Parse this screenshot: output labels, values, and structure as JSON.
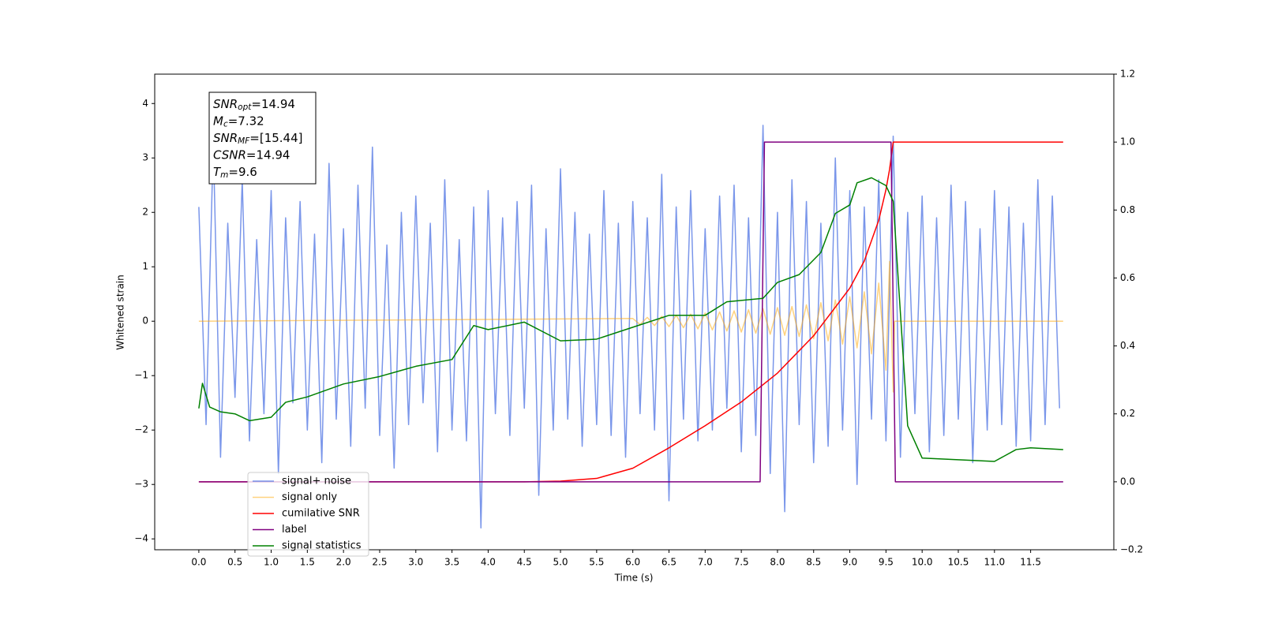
{
  "chart_data": {
    "type": "line",
    "xlabel": "Time (s)",
    "ylabel": "Whitened strain",
    "xlim": [
      -0.61,
      12.65
    ],
    "ylim": [
      -4.2,
      4.54
    ],
    "y2lim": [
      -0.2,
      1.2
    ],
    "xticks": [
      {
        "value": 0,
        "label": "0.0"
      },
      0.5,
      {
        "value": 1,
        "label": "1.0"
      },
      1.5,
      {
        "value": 2,
        "label": "2.0"
      },
      2.5,
      {
        "value": 3,
        "label": "3.0"
      },
      3.5,
      {
        "value": 4,
        "label": "4.0"
      },
      4.5,
      {
        "value": 5,
        "label": "5.0"
      },
      5.5,
      {
        "value": 6,
        "label": "6.0"
      },
      6.5,
      {
        "value": 7,
        "label": "7.0"
      },
      7.5,
      {
        "value": 8,
        "label": "8.0"
      },
      8.5,
      {
        "value": 9,
        "label": "9.0"
      },
      9.5,
      {
        "value": 10,
        "label": "10.0"
      },
      10.5,
      {
        "value": 11,
        "label": "11.0"
      },
      11.5
    ],
    "yticks": [
      {
        "value": -4,
        "label": "−4"
      },
      {
        "value": -3,
        "label": "−3"
      },
      {
        "value": -2,
        "label": "−2"
      },
      {
        "value": -1,
        "label": "−1"
      },
      0,
      1,
      2,
      3,
      4
    ],
    "y2ticks": [
      {
        "value": -0.2,
        "label": "−0.2"
      },
      {
        "value": 0,
        "label": "0.0"
      },
      0.2,
      0.4,
      0.6,
      0.8,
      {
        "value": 1,
        "label": "1.0"
      },
      1.2
    ],
    "legend": "lower left",
    "annotation": [
      {
        "base": "SNR",
        "sub": "opt",
        "text": "=14.94"
      },
      {
        "base": "M",
        "sub": "c",
        "text": "=7.32"
      },
      {
        "base": "SNR",
        "sub": "MF",
        "text": "=[15.44]"
      },
      {
        "base": "CSNR",
        "sub": null,
        "text": "=14.94"
      },
      {
        "base": "T",
        "sub": "m",
        "text": "=9.6"
      }
    ],
    "series": [
      {
        "name": "signal+ noise",
        "color": "#4169e1",
        "alpha": 0.7,
        "x": [
          0,
          0.1,
          0.2,
          0.3,
          0.4,
          0.5,
          0.6,
          0.7,
          0.8,
          0.9,
          1,
          1.1,
          1.2,
          1.3,
          1.4,
          1.5,
          1.6,
          1.7,
          1.8,
          1.9,
          2,
          2.1,
          2.2,
          2.3,
          2.4,
          2.5,
          2.6,
          2.7,
          2.8,
          2.9,
          3,
          3.1,
          3.2,
          3.3,
          3.4,
          3.5,
          3.6,
          3.7,
          3.8,
          3.9,
          4,
          4.1,
          4.2,
          4.3,
          4.4,
          4.5,
          4.6,
          4.7,
          4.8,
          4.9,
          5,
          5.1,
          5.2,
          5.3,
          5.4,
          5.5,
          5.6,
          5.7,
          5.8,
          5.9,
          6,
          6.1,
          6.2,
          6.3,
          6.4,
          6.5,
          6.6,
          6.7,
          6.8,
          6.9,
          7,
          7.1,
          7.2,
          7.3,
          7.4,
          7.5,
          7.6,
          7.7,
          7.8,
          7.9,
          8,
          8.1,
          8.2,
          8.3,
          8.4,
          8.5,
          8.6,
          8.7,
          8.8,
          8.9,
          9,
          9.1,
          9.2,
          9.3,
          9.4,
          9.5,
          9.6,
          9.7,
          9.8,
          9.9,
          10,
          10.1,
          10.2,
          10.3,
          10.4,
          10.5,
          10.6,
          10.7,
          10.8,
          10.9,
          11,
          11.1,
          11.2,
          11.3,
          11.4,
          11.5,
          11.6,
          11.7,
          11.8,
          11.9
        ],
        "values": [
          2.1,
          -1.9,
          3.3,
          -2.5,
          1.8,
          -1.4,
          2.6,
          -2.2,
          1.5,
          -1.7,
          2.4,
          -2.8,
          1.9,
          -1.5,
          2.2,
          -2.0,
          1.6,
          -2.6,
          2.9,
          -1.8,
          1.7,
          -2.3,
          2.5,
          -1.6,
          3.2,
          -2.1,
          1.4,
          -2.7,
          2.0,
          -1.9,
          2.3,
          -1.5,
          1.8,
          -2.4,
          2.6,
          -2.0,
          1.5,
          -2.2,
          2.1,
          -3.8,
          2.4,
          -1.7,
          1.9,
          -2.1,
          2.2,
          -1.6,
          2.5,
          -3.2,
          1.7,
          -2.0,
          2.8,
          -1.8,
          2.0,
          -2.3,
          1.6,
          -1.9,
          2.4,
          -2.1,
          1.8,
          -2.5,
          2.2,
          -1.7,
          1.9,
          -2.0,
          2.7,
          -3.3,
          2.1,
          -1.8,
          2.4,
          -2.2,
          1.7,
          -2.0,
          2.3,
          -1.6,
          2.5,
          -2.4,
          1.9,
          -2.1,
          3.6,
          -2.8,
          2.0,
          -3.5,
          2.6,
          -1.9,
          2.2,
          -2.6,
          1.8,
          -2.3,
          3.0,
          -2.0,
          2.4,
          -3.0,
          2.1,
          -1.8,
          2.6,
          -2.2,
          3.4,
          -2.5,
          2.0,
          -1.7,
          2.3,
          -2.4,
          1.9,
          -2.1,
          2.5,
          -1.8,
          2.2,
          -2.6,
          1.7,
          -2.0,
          2.4,
          -1.9,
          2.1,
          -2.3,
          1.8,
          -2.2,
          2.6,
          -1.9,
          2.3,
          -1.6
        ]
      },
      {
        "name": "signal only",
        "color": "orange",
        "alpha": 0.5,
        "x": [
          0,
          6.0,
          6.1,
          6.2,
          6.3,
          6.4,
          6.5,
          6.6,
          6.7,
          6.8,
          6.9,
          7.0,
          7.1,
          7.2,
          7.3,
          7.4,
          7.5,
          7.6,
          7.7,
          7.8,
          7.9,
          8.0,
          8.1,
          8.2,
          8.3,
          8.4,
          8.5,
          8.6,
          8.7,
          8.8,
          8.9,
          9.0,
          9.1,
          9.2,
          9.3,
          9.4,
          9.5,
          9.55,
          9.6,
          9.62,
          11.95
        ],
        "values": [
          0,
          0.05,
          -0.06,
          0.07,
          -0.08,
          0.09,
          -0.1,
          0.11,
          -0.12,
          0.13,
          -0.14,
          0.15,
          -0.16,
          0.17,
          -0.18,
          0.19,
          -0.2,
          0.21,
          -0.22,
          0.23,
          -0.24,
          0.25,
          -0.26,
          0.27,
          -0.28,
          0.3,
          -0.32,
          0.34,
          -0.36,
          0.39,
          -0.42,
          0.45,
          -0.49,
          0.54,
          -0.6,
          0.7,
          -0.9,
          1.1,
          -1.3,
          0,
          0
        ]
      },
      {
        "name": "cumilative SNR",
        "color": "red",
        "axis": "y2",
        "x": [
          0,
          4.5,
          5.0,
          5.5,
          6.0,
          6.5,
          7.0,
          7.5,
          8.0,
          8.5,
          9.0,
          9.2,
          9.4,
          9.5,
          9.55,
          9.6,
          11.95
        ],
        "values": [
          0,
          0,
          0.002,
          0.01,
          0.04,
          0.1,
          0.165,
          0.235,
          0.32,
          0.43,
          0.57,
          0.65,
          0.77,
          0.86,
          0.92,
          1.0,
          1.0
        ]
      },
      {
        "name": "label",
        "color": "purple",
        "axis": "y2",
        "x": [
          0,
          7.76,
          7.82,
          9.57,
          9.63,
          11.95
        ],
        "values": [
          0,
          0,
          1,
          1,
          0,
          0
        ]
      },
      {
        "name": "signal statistics",
        "color": "green",
        "axis": "y2",
        "x": [
          0,
          0.05,
          0.15,
          0.3,
          0.5,
          0.7,
          1.0,
          1.2,
          1.5,
          2.0,
          2.5,
          3.0,
          3.5,
          3.8,
          4.0,
          4.5,
          5.0,
          5.5,
          6.0,
          6.5,
          7.0,
          7.3,
          7.8,
          8.0,
          8.3,
          8.6,
          8.8,
          9.0,
          9.1,
          9.3,
          9.5,
          9.6,
          9.8,
          10.0,
          10.5,
          11.0,
          11.3,
          11.5,
          11.95
        ],
        "values": [
          0.216,
          0.29,
          0.22,
          0.206,
          0.2,
          0.18,
          0.19,
          0.234,
          0.25,
          0.288,
          0.31,
          0.34,
          0.36,
          0.46,
          0.448,
          0.47,
          0.415,
          0.42,
          0.455,
          0.49,
          0.49,
          0.53,
          0.54,
          0.587,
          0.61,
          0.675,
          0.79,
          0.815,
          0.88,
          0.895,
          0.872,
          0.826,
          0.165,
          0.07,
          0.065,
          0.06,
          0.095,
          0.1,
          0.095
        ]
      }
    ]
  }
}
